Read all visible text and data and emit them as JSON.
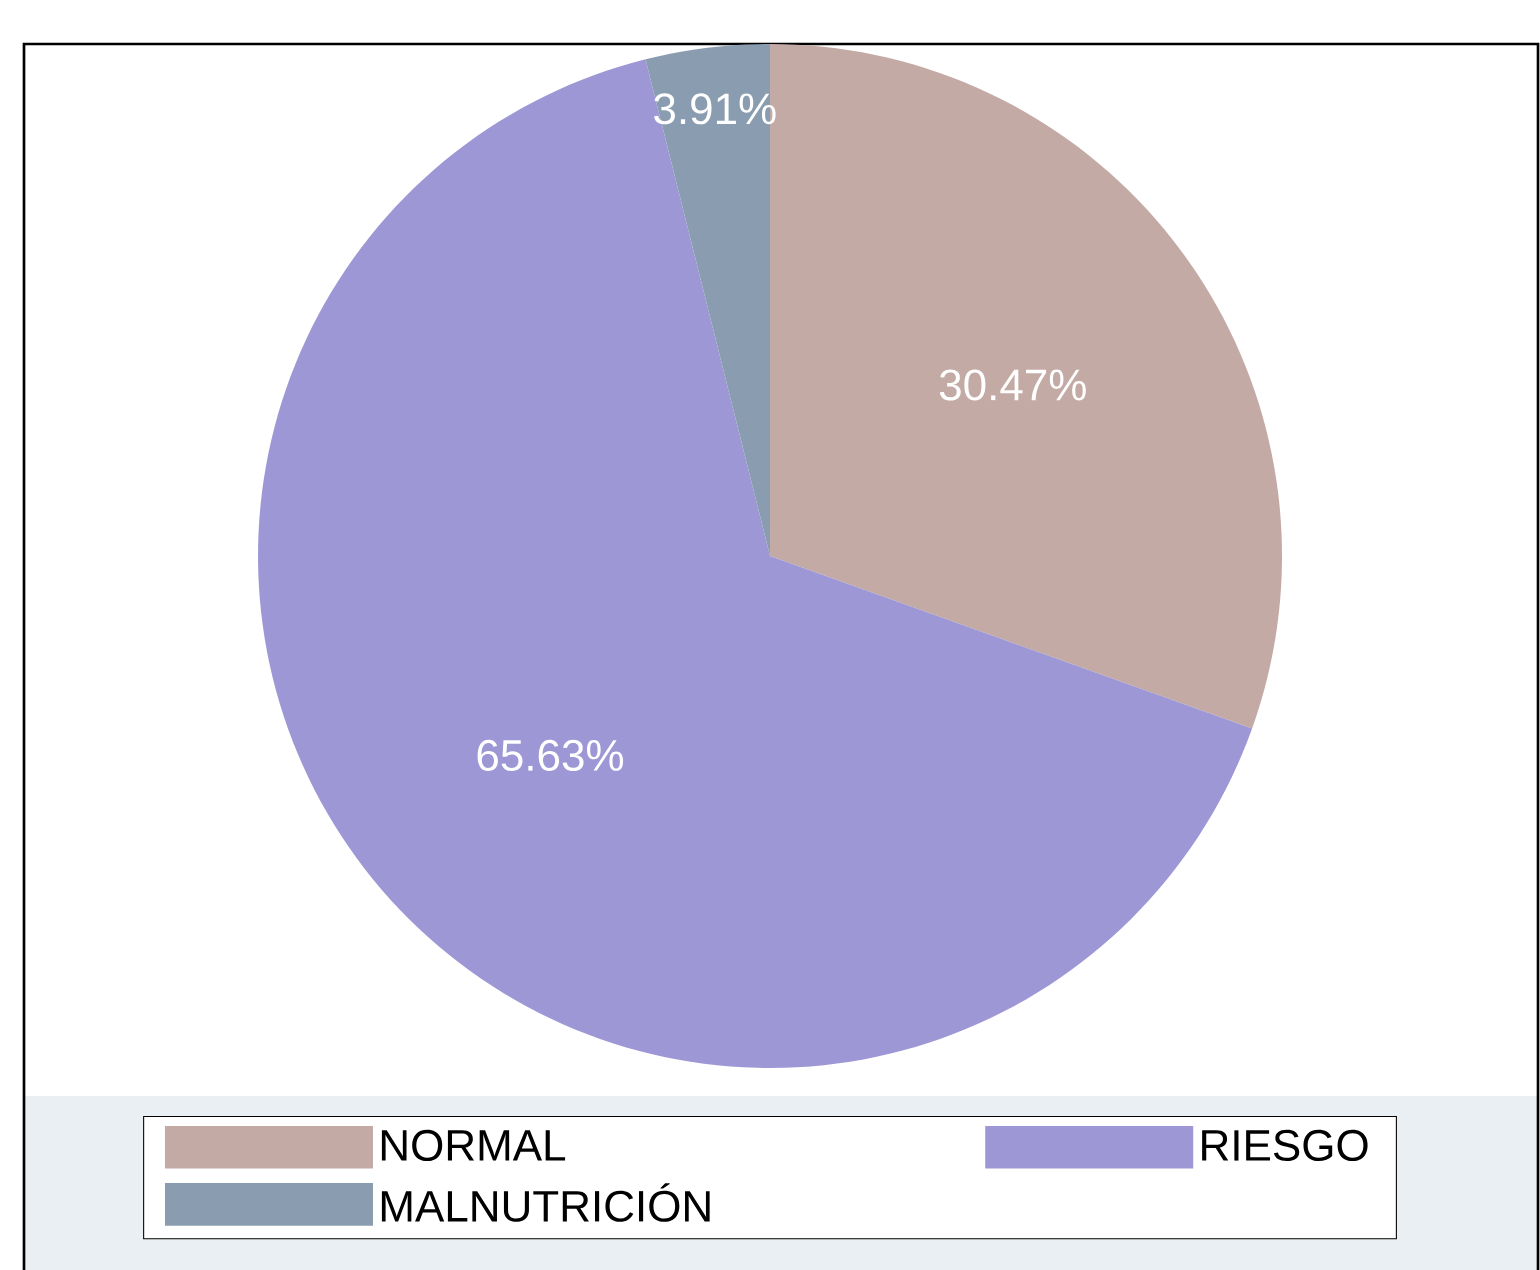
{
  "chart_data": {
    "type": "pie",
    "categories": [
      "NORMAL",
      "RIESGO",
      "MALNUTRICIÓN"
    ],
    "values": [
      30.47,
      65.63,
      3.91
    ],
    "colors": [
      "#c4aaa5",
      "#9e97d6",
      "#8a9db0"
    ],
    "value_labels": [
      "30.47%",
      "65.63%",
      "3.91%"
    ],
    "legend": "bottom"
  }
}
